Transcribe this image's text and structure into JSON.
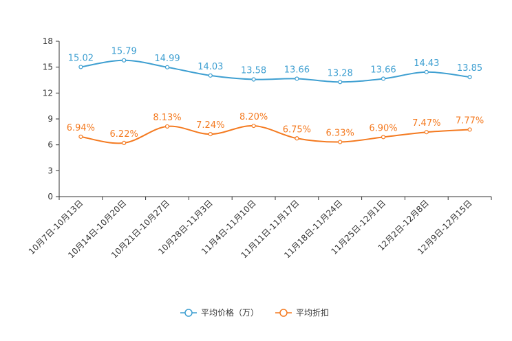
{
  "chart_data": {
    "type": "line",
    "title": "",
    "xlabel": "",
    "ylabel": "",
    "ylim": [
      0,
      18
    ],
    "yticks": [
      0,
      3,
      6,
      9,
      12,
      15,
      18
    ],
    "legend_position": "bottom",
    "categories": [
      "10月7日-10月13日",
      "10月14日-10月20日",
      "10月21日-10月27日",
      "10月28日-11月3日",
      "11月4日-11月10日",
      "11月11日-11月17日",
      "11月18日-11月24日",
      "11月25日-12月1日",
      "12月2日-12月8日",
      "12月9日-12月15日"
    ],
    "series": [
      {
        "name": "平均价格（万）",
        "color": "#3e9fd1",
        "values": [
          15.02,
          15.79,
          14.99,
          14.03,
          13.58,
          13.66,
          13.28,
          13.66,
          14.43,
          13.85
        ],
        "labels": [
          "15.02",
          "15.79",
          "14.99",
          "14.03",
          "13.58",
          "13.66",
          "13.28",
          "13.66",
          "14.43",
          "13.85"
        ]
      },
      {
        "name": "平均折扣",
        "color": "#f47a20",
        "values": [
          6.94,
          6.22,
          8.13,
          7.24,
          8.2,
          6.75,
          6.33,
          6.9,
          7.47,
          7.77
        ],
        "labels": [
          "6.94%",
          "6.22%",
          "8.13%",
          "7.24%",
          "8.20%",
          "6.75%",
          "6.33%",
          "6.90%",
          "7.47%",
          "7.77%"
        ]
      }
    ]
  }
}
